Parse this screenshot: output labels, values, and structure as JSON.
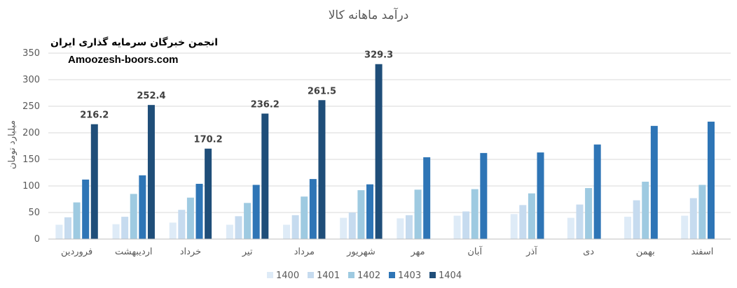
{
  "watermark": {
    "line1": "انجمن خبرگان سرمایه گذاری ایران",
    "line2": "Amoozesh-boors.com"
  },
  "chart_data": {
    "type": "bar",
    "title": "درآمد ماهانه کالا",
    "ylabel": "میلیارد تومان",
    "xlabel": "",
    "ylim": [
      0,
      350
    ],
    "yticks": [
      0,
      50,
      100,
      150,
      200,
      250,
      300,
      350
    ],
    "grid": true,
    "legend_position": "bottom",
    "categories": [
      "فروردین",
      "اردیبهشت",
      "خرداد",
      "تیر",
      "مرداد",
      "شهریور",
      "مهر",
      "آبان",
      "آذر",
      "دی",
      "بهمن",
      "اسفند"
    ],
    "series": [
      {
        "name": "1400",
        "color": "#deebf7",
        "values": [
          27,
          28,
          31,
          27,
          27,
          40,
          39,
          44,
          47,
          40,
          42,
          44
        ]
      },
      {
        "name": "1401",
        "color": "#c6dbef",
        "values": [
          41,
          42,
          55,
          43,
          45,
          50,
          45,
          52,
          64,
          65,
          73,
          77
        ]
      },
      {
        "name": "1402",
        "color": "#9ecae1",
        "values": [
          69,
          85,
          78,
          68,
          80,
          92,
          93,
          94,
          86,
          96,
          108,
          102
        ]
      },
      {
        "name": "1403",
        "color": "#2e75b6",
        "values": [
          112,
          120,
          104,
          102,
          113,
          103,
          154,
          162,
          163,
          178,
          213,
          221
        ]
      },
      {
        "name": "1404",
        "color": "#1f4e79",
        "values": [
          216.2,
          252.4,
          170.2,
          236.2,
          261.5,
          329.3,
          null,
          null,
          null,
          null,
          null,
          null
        ]
      }
    ],
    "data_labels": {
      "series": "1404",
      "labels": [
        "216.2",
        "252.4",
        "170.2",
        "236.2",
        "261.5",
        "329.3"
      ]
    }
  }
}
